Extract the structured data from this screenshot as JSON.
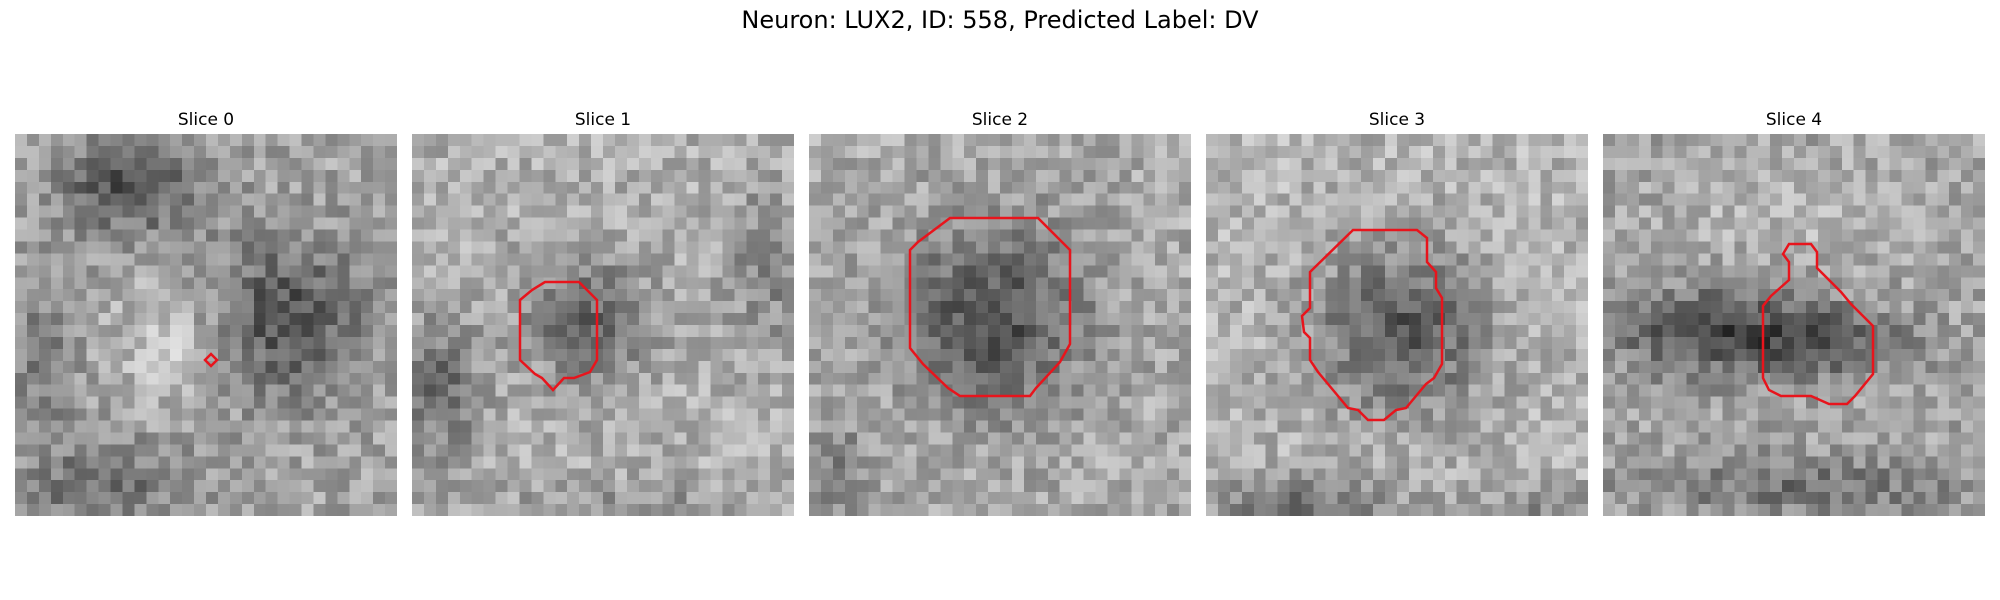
{
  "figure": {
    "title": "Neuron: LUX2, ID: 558, Predicted Label: DV"
  },
  "panels": [
    {
      "title": "Slice 0",
      "contour_color": "#e8141c"
    },
    {
      "title": "Slice 1",
      "contour_color": "#e8141c"
    },
    {
      "title": "Slice 2",
      "contour_color": "#e8141c"
    },
    {
      "title": "Slice 3",
      "contour_color": "#e8141c"
    },
    {
      "title": "Slice 4",
      "contour_color": "#e8141c"
    }
  ],
  "colormap": "gray"
}
